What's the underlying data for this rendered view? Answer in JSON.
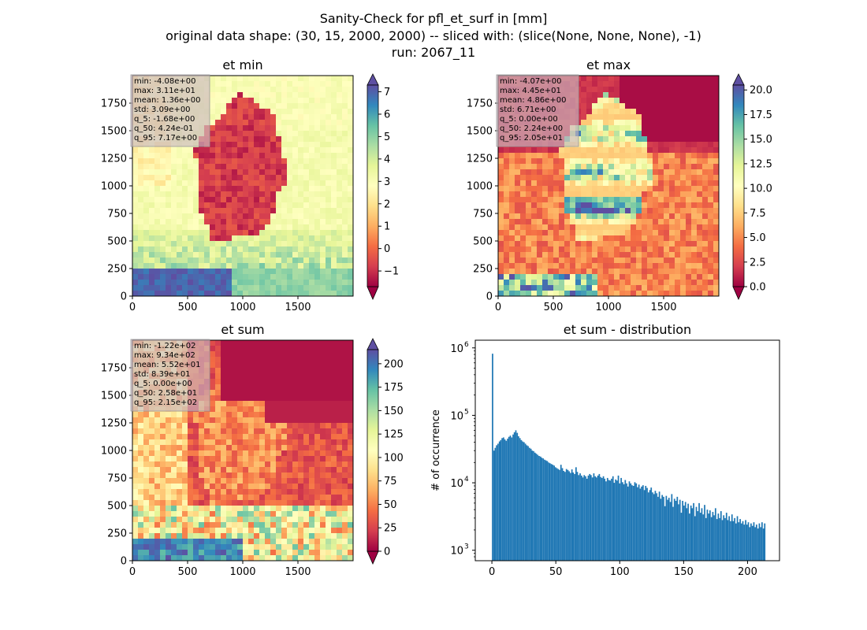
{
  "figure": {
    "suptitle_lines": [
      "Sanity-Check for pfl_et_surf in [mm]",
      "original data shape: (30, 15, 2000, 2000) -- sliced with: (slice(None, None, None), -1)",
      "run: 2067_11"
    ]
  },
  "colors": {
    "spectral_r": [
      "#9e0142",
      "#d53e4f",
      "#f46d43",
      "#fdae61",
      "#fee08b",
      "#ffffbf",
      "#e6f598",
      "#abdda4",
      "#66c2a5",
      "#3288bd",
      "#5e4fa2"
    ],
    "histogram_bar": "#1f77b4",
    "stats_box": "#c9b8c0"
  },
  "chart_data": [
    {
      "type": "heatmap",
      "id": "et-min",
      "title": "et min",
      "xlim": [
        0,
        2000
      ],
      "ylim": [
        0,
        2000
      ],
      "x_ticks": [
        0,
        500,
        1000,
        1500
      ],
      "y_ticks": [
        0,
        250,
        500,
        750,
        1000,
        1250,
        1500,
        1750
      ],
      "colorbar": {
        "min": -1.7,
        "max": 7.3,
        "ticks": [
          -1,
          0,
          1,
          2,
          3,
          4,
          5,
          6,
          7
        ],
        "extend": "both"
      },
      "stats": [
        "min: -4.08e+00",
        "max: 3.11e+01",
        "mean: 1.36e+00",
        "std: 3.09e+00",
        "q_5: -1.68e+00",
        "q_50: 4.24e-01",
        "q_95: 7.17e+00"
      ]
    },
    {
      "type": "heatmap",
      "id": "et-max",
      "title": "et max",
      "xlim": [
        0,
        2000
      ],
      "ylim": [
        0,
        2000
      ],
      "x_ticks": [
        0,
        500,
        1000,
        1500
      ],
      "y_ticks": [
        0,
        250,
        500,
        750,
        1000,
        1250,
        1500,
        1750
      ],
      "colorbar": {
        "min": 0,
        "max": 20.5,
        "ticks": [
          0.0,
          2.5,
          5.0,
          7.5,
          10.0,
          12.5,
          15.0,
          17.5,
          20.0
        ],
        "extend": "both"
      },
      "stats": [
        "min: -4.07e+00",
        "max: 4.45e+01",
        "mean: 4.86e+00",
        "std: 6.71e+00",
        "q_5: 0.00e+00",
        "q_50: 2.24e+00",
        "q_95: 2.05e+01"
      ]
    },
    {
      "type": "heatmap",
      "id": "et-sum",
      "title": "et sum",
      "xlim": [
        0,
        2000
      ],
      "ylim": [
        0,
        2000
      ],
      "x_ticks": [
        0,
        500,
        1000,
        1500
      ],
      "y_ticks": [
        0,
        250,
        500,
        750,
        1000,
        1250,
        1500,
        1750
      ],
      "colorbar": {
        "min": 0,
        "max": 215,
        "ticks": [
          0,
          25,
          50,
          75,
          100,
          125,
          150,
          175,
          200
        ],
        "extend": "both"
      },
      "stats": [
        "min: -1.22e+02",
        "max: 9.34e+02",
        "mean: 5.52e+01",
        "std: 8.39e+01",
        "q_5: 0.00e+00",
        "q_50: 2.58e+01",
        "q_95: 2.15e+02"
      ]
    },
    {
      "type": "bar",
      "id": "et-sum-distribution",
      "title": "et sum - distribution",
      "ylabel": "# of occurrence",
      "yscale": "log",
      "xlim": [
        -13,
        225
      ],
      "ylim": [
        700,
        1300000
      ],
      "x_ticks": [
        0,
        50,
        100,
        150,
        200
      ],
      "y_ticks": [
        1000,
        10000,
        100000,
        1000000
      ],
      "y_tick_labels": [
        "10",
        "10",
        "10",
        "10"
      ],
      "y_tick_exponents": [
        "3",
        "4",
        "5",
        "6"
      ],
      "bin_width": 1.07,
      "bins": [
        [
          0.0,
          820000
        ],
        [
          1.1,
          30000
        ],
        [
          2.1,
          33000
        ],
        [
          3.2,
          36000
        ],
        [
          4.3,
          38000
        ],
        [
          5.4,
          41000
        ],
        [
          6.4,
          43000
        ],
        [
          7.5,
          46000
        ],
        [
          8.6,
          47000
        ],
        [
          9.6,
          44000
        ],
        [
          10.7,
          42000
        ],
        [
          11.8,
          45000
        ],
        [
          12.8,
          48000
        ],
        [
          13.9,
          50000
        ],
        [
          15.0,
          47000
        ],
        [
          16.1,
          52000
        ],
        [
          17.1,
          56000
        ],
        [
          18.2,
          60000
        ],
        [
          19.3,
          55000
        ],
        [
          20.3,
          49000
        ],
        [
          21.4,
          46000
        ],
        [
          22.5,
          43000
        ],
        [
          23.5,
          41000
        ],
        [
          24.6,
          40000
        ],
        [
          25.7,
          38000
        ],
        [
          26.8,
          36000
        ],
        [
          27.8,
          35000
        ],
        [
          28.9,
          33000
        ],
        [
          30.0,
          32000
        ],
        [
          31.0,
          30000
        ],
        [
          32.1,
          29500
        ],
        [
          33.2,
          28000
        ],
        [
          34.2,
          27000
        ],
        [
          35.3,
          26000
        ],
        [
          36.4,
          25000
        ],
        [
          37.5,
          24500
        ],
        [
          38.5,
          23500
        ],
        [
          39.6,
          23000
        ],
        [
          40.7,
          22000
        ],
        [
          41.7,
          21500
        ],
        [
          42.8,
          21000
        ],
        [
          43.9,
          20000
        ],
        [
          44.9,
          19500
        ],
        [
          46.0,
          19000
        ],
        [
          47.1,
          18500
        ],
        [
          48.2,
          18000
        ],
        [
          49.2,
          17000
        ],
        [
          50.3,
          16500
        ],
        [
          51.4,
          16000
        ],
        [
          52.4,
          15500
        ],
        [
          53.5,
          18500
        ],
        [
          54.6,
          16500
        ],
        [
          55.6,
          15000
        ],
        [
          56.7,
          14500
        ],
        [
          57.8,
          16000
        ],
        [
          58.9,
          15500
        ],
        [
          59.9,
          14800
        ],
        [
          61.0,
          14000
        ],
        [
          62.1,
          15800
        ],
        [
          63.1,
          14200
        ],
        [
          64.2,
          13500
        ],
        [
          65.3,
          17000
        ],
        [
          66.3,
          14500
        ],
        [
          67.4,
          13000
        ],
        [
          68.5,
          13800
        ],
        [
          69.6,
          12800
        ],
        [
          70.6,
          12000
        ],
        [
          71.7,
          13000
        ],
        [
          72.8,
          12500
        ],
        [
          73.8,
          11500
        ],
        [
          74.9,
          12800
        ],
        [
          76.0,
          13500
        ],
        [
          77.0,
          13000
        ],
        [
          78.1,
          12000
        ],
        [
          79.2,
          13800
        ],
        [
          80.3,
          12500
        ],
        [
          81.3,
          12000
        ],
        [
          82.4,
          12800
        ],
        [
          83.5,
          13500
        ],
        [
          84.5,
          12200
        ],
        [
          85.6,
          11800
        ],
        [
          86.7,
          12500
        ],
        [
          87.7,
          11500
        ],
        [
          88.8,
          10500
        ],
        [
          89.9,
          11800
        ],
        [
          91.0,
          11000
        ],
        [
          92.0,
          10800
        ],
        [
          93.1,
          11500
        ],
        [
          94.2,
          12500
        ],
        [
          95.2,
          10000
        ],
        [
          96.3,
          11200
        ],
        [
          97.4,
          10800
        ],
        [
          98.4,
          12800
        ],
        [
          99.5,
          9800
        ],
        [
          100.6,
          11800
        ],
        [
          101.7,
          10200
        ],
        [
          102.7,
          9500
        ],
        [
          103.8,
          11000
        ],
        [
          104.9,
          9800
        ],
        [
          105.9,
          8800
        ],
        [
          107.0,
          10500
        ],
        [
          108.1,
          9800
        ],
        [
          109.1,
          9200
        ],
        [
          110.2,
          9000
        ],
        [
          111.3,
          10200
        ],
        [
          112.4,
          9800
        ],
        [
          113.4,
          8600
        ],
        [
          114.5,
          9400
        ],
        [
          115.6,
          8200
        ],
        [
          116.6,
          8800
        ],
        [
          117.7,
          9200
        ],
        [
          118.8,
          7800
        ],
        [
          119.8,
          9000
        ],
        [
          120.9,
          8400
        ],
        [
          122.0,
          7200
        ],
        [
          123.1,
          7800
        ],
        [
          124.1,
          8500
        ],
        [
          125.2,
          7200
        ],
        [
          126.3,
          6800
        ],
        [
          127.3,
          7600
        ],
        [
          128.4,
          7000
        ],
        [
          129.5,
          6200
        ],
        [
          130.5,
          7400
        ],
        [
          131.6,
          5800
        ],
        [
          132.7,
          6600
        ],
        [
          133.8,
          6200
        ],
        [
          134.8,
          4500
        ],
        [
          135.9,
          6400
        ],
        [
          137.0,
          5600
        ],
        [
          138.0,
          6000
        ],
        [
          139.1,
          5200
        ],
        [
          140.2,
          6800
        ],
        [
          141.2,
          4400
        ],
        [
          142.3,
          5800
        ],
        [
          143.4,
          5400
        ],
        [
          144.5,
          6200
        ],
        [
          145.5,
          4800
        ],
        [
          146.6,
          5600
        ],
        [
          147.7,
          3600
        ],
        [
          148.7,
          5400
        ],
        [
          149.8,
          4600
        ],
        [
          150.9,
          5200
        ],
        [
          151.9,
          4200
        ],
        [
          153.0,
          4900
        ],
        [
          154.1,
          3500
        ],
        [
          155.2,
          4600
        ],
        [
          156.2,
          4200
        ],
        [
          157.3,
          5000
        ],
        [
          158.4,
          3200
        ],
        [
          159.4,
          4400
        ],
        [
          160.5,
          3800
        ],
        [
          161.6,
          5000
        ],
        [
          162.6,
          3600
        ],
        [
          163.7,
          4200
        ],
        [
          164.8,
          3400
        ],
        [
          165.9,
          4700
        ],
        [
          166.9,
          3000
        ],
        [
          168.0,
          4000
        ],
        [
          169.1,
          3500
        ],
        [
          170.1,
          3900
        ],
        [
          171.2,
          3100
        ],
        [
          172.3,
          3700
        ],
        [
          173.3,
          3300
        ],
        [
          174.4,
          4200
        ],
        [
          175.5,
          2900
        ],
        [
          176.6,
          3500
        ],
        [
          177.6,
          3000
        ],
        [
          178.7,
          3800
        ],
        [
          179.8,
          2800
        ],
        [
          180.8,
          3300
        ],
        [
          181.9,
          3000
        ],
        [
          183.0,
          3600
        ],
        [
          184.0,
          2800
        ],
        [
          185.1,
          3200
        ],
        [
          186.2,
          2700
        ],
        [
          187.3,
          3400
        ],
        [
          188.3,
          2700
        ],
        [
          189.4,
          3000
        ],
        [
          190.5,
          2500
        ],
        [
          191.5,
          3200
        ],
        [
          192.6,
          2600
        ],
        [
          193.7,
          2900
        ],
        [
          194.7,
          2500
        ],
        [
          195.8,
          2700
        ],
        [
          196.9,
          2400
        ],
        [
          198.0,
          2800
        ],
        [
          199.0,
          2400
        ],
        [
          200.1,
          2600
        ],
        [
          201.2,
          2200
        ],
        [
          202.2,
          2500
        ],
        [
          203.3,
          2300
        ],
        [
          204.4,
          2600
        ],
        [
          205.4,
          2200
        ],
        [
          206.5,
          2400
        ],
        [
          207.6,
          2100
        ],
        [
          208.7,
          2500
        ],
        [
          209.7,
          2200
        ],
        [
          210.8,
          2600
        ],
        [
          211.9,
          2100
        ],
        [
          212.9,
          2500
        ]
      ]
    }
  ]
}
